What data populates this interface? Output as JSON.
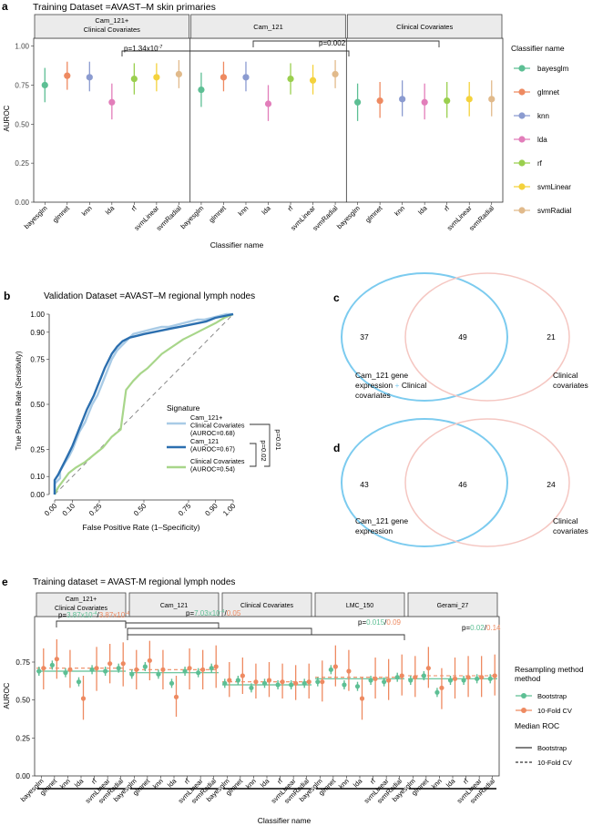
{
  "panels": {
    "a": "a",
    "b": "b",
    "c": "c",
    "d": "d",
    "e": "e"
  },
  "colors": {
    "bayesglm": "#5DBF94",
    "glmnet": "#EE8A61",
    "knn": "#8B9BD0",
    "lda": "#E27EBA",
    "rf": "#9ACF4E",
    "svmLinear": "#F4D23C",
    "svmRadial": "#E1BA8B",
    "roc_combined": "#A9CBE6",
    "roc_cam": "#2C6FAF",
    "roc_clin": "#A8D68A",
    "venn_left": "#7CCBEF",
    "venn_right": "#F5C7C2",
    "boot": "#5DBF94",
    "cv": "#EE8A61"
  },
  "chart_data": [
    {
      "id": "a",
      "type": "scatter",
      "title": "Training Dataset =AVAST–M skin primaries",
      "xlabel": "Classifier name",
      "ylabel": "AUROC",
      "ylim": [
        0,
        1.05
      ],
      "yticks": [
        "0.00",
        "0.25",
        "0.50",
        "0.75",
        "1.00"
      ],
      "facets": [
        "Cam_121+\nClinical Covariates",
        "Cam_121",
        "Clinical Covariates"
      ],
      "categories": [
        "bayesglm",
        "glmnet",
        "knn",
        "lda",
        "rf",
        "svmLinear",
        "svmRadial"
      ],
      "series": [
        {
          "facet": 0,
          "mean": [
            0.75,
            0.81,
            0.8,
            0.64,
            0.79,
            0.8,
            0.82
          ],
          "lo": [
            0.64,
            0.72,
            0.71,
            0.53,
            0.69,
            0.71,
            0.73
          ],
          "hi": [
            0.86,
            0.9,
            0.9,
            0.76,
            0.89,
            0.89,
            0.91
          ]
        },
        {
          "facet": 1,
          "mean": [
            0.72,
            0.8,
            0.8,
            0.63,
            0.79,
            0.78,
            0.82
          ],
          "lo": [
            0.61,
            0.71,
            0.71,
            0.52,
            0.69,
            0.69,
            0.73
          ],
          "hi": [
            0.83,
            0.9,
            0.9,
            0.75,
            0.89,
            0.88,
            0.91
          ]
        },
        {
          "facet": 2,
          "mean": [
            0.64,
            0.65,
            0.66,
            0.64,
            0.65,
            0.66,
            0.66
          ],
          "lo": [
            0.52,
            0.54,
            0.55,
            0.53,
            0.54,
            0.55,
            0.55
          ],
          "hi": [
            0.76,
            0.77,
            0.78,
            0.76,
            0.77,
            0.77,
            0.78
          ]
        }
      ],
      "legend_title": "Classifier name",
      "annotations": [
        {
          "text": "p=1.34x10",
          "sup": "-7"
        },
        {
          "text": "p=0.002"
        }
      ]
    },
    {
      "id": "b",
      "type": "line",
      "title": "Validation Dataset =AVAST–M regional lymph nodes",
      "xlabel": "False Positive Rate (1–Specificity)",
      "ylabel": "True Positive Rate (Sensitivity)",
      "xticks": [
        "0.00",
        "0.10",
        "0.25",
        "0.50",
        "0.75",
        "0.90",
        "1.00"
      ],
      "xtick_vals": [
        0,
        0.1,
        0.25,
        0.5,
        0.75,
        0.9,
        1.0
      ],
      "yticks": [
        "0.00",
        "0.10",
        "0.25",
        "0.50",
        "0.75",
        "0.90",
        "1.00"
      ],
      "ytick_vals": [
        0,
        0.1,
        0.25,
        0.5,
        0.75,
        0.9,
        1.0
      ],
      "legend_title": "Signature",
      "series": [
        {
          "name": "Cam_121+ Clinical Covariates (AUROC=0.68)",
          "l1": "Cam_121+",
          "l2": "Clinical Covariates",
          "l3": "(AUROC=0.68)",
          "x": [
            0,
            0,
            0.03,
            0.03,
            0.06,
            0.08,
            0.1,
            0.12,
            0.14,
            0.17,
            0.19,
            0.21,
            0.24,
            0.26,
            0.28,
            0.3,
            0.32,
            0.35,
            0.38,
            0.41,
            0.44,
            0.48,
            0.52,
            0.56,
            0.6,
            0.64,
            0.68,
            0.72,
            0.76,
            0.8,
            0.84,
            0.88,
            0.92,
            0.96,
            1.0
          ],
          "y": [
            0,
            0.06,
            0.09,
            0.13,
            0.18,
            0.21,
            0.25,
            0.3,
            0.35,
            0.4,
            0.45,
            0.5,
            0.55,
            0.6,
            0.65,
            0.7,
            0.75,
            0.8,
            0.83,
            0.86,
            0.89,
            0.9,
            0.91,
            0.92,
            0.93,
            0.93,
            0.94,
            0.95,
            0.96,
            0.97,
            0.97,
            0.98,
            0.99,
            1.0,
            1.0
          ]
        },
        {
          "name": "Cam_121 (AUROC=0.67)",
          "l1": "Cam_121",
          "l2": "(AUROC=0.67)",
          "l3": "",
          "x": [
            0,
            0,
            0.02,
            0.04,
            0.06,
            0.08,
            0.1,
            0.12,
            0.14,
            0.16,
            0.18,
            0.2,
            0.22,
            0.24,
            0.26,
            0.28,
            0.3,
            0.32,
            0.35,
            0.38,
            0.42,
            0.46,
            0.5,
            0.55,
            0.6,
            0.65,
            0.7,
            0.75,
            0.8,
            0.85,
            0.9,
            0.95,
            1.0
          ],
          "y": [
            0,
            0.08,
            0.11,
            0.15,
            0.19,
            0.23,
            0.27,
            0.32,
            0.37,
            0.42,
            0.47,
            0.51,
            0.55,
            0.6,
            0.65,
            0.7,
            0.74,
            0.78,
            0.82,
            0.85,
            0.87,
            0.88,
            0.89,
            0.9,
            0.91,
            0.92,
            0.93,
            0.94,
            0.95,
            0.96,
            0.98,
            0.99,
            1.0
          ]
        },
        {
          "name": "Clinical Covariates (AUROC=0.54)",
          "l1": "Clinical Covariates",
          "l2": "(AUROC=0.54)",
          "l3": "",
          "x": [
            0,
            0.02,
            0.05,
            0.08,
            0.12,
            0.17,
            0.22,
            0.27,
            0.32,
            0.37,
            0.4,
            0.44,
            0.48,
            0.52,
            0.56,
            0.6,
            0.66,
            0.72,
            0.78,
            0.84,
            0.9,
            0.95,
            1.0
          ],
          "y": [
            0,
            0.04,
            0.08,
            0.12,
            0.15,
            0.18,
            0.22,
            0.26,
            0.32,
            0.36,
            0.58,
            0.63,
            0.67,
            0.7,
            0.74,
            0.78,
            0.82,
            0.86,
            0.89,
            0.92,
            0.95,
            0.98,
            1.0
          ]
        }
      ],
      "annotations": [
        {
          "text": "p=0.02"
        },
        {
          "text": "p=0.01"
        }
      ]
    },
    {
      "id": "e",
      "type": "scatter",
      "title": "Training dataset = AVAST-M regional lymph nodes",
      "xlabel": "Classifier name",
      "ylabel": "AUROC",
      "ylim": [
        0,
        1.05
      ],
      "yticks": [
        "0.00",
        "0.25",
        "0.50",
        "0.75"
      ],
      "facets": [
        "Cam_121+\nClinical Covariates",
        "Cam_121",
        "Clinical Covariates",
        "LMC_150",
        "Gerami_27"
      ],
      "categories": [
        "bayesglm",
        "glmnet",
        "knn",
        "lda",
        "rf",
        "svmLinear",
        "svmRadial"
      ],
      "legend_title": "Resampling method",
      "series_names": [
        "Bootstrap",
        "10-Fold CV"
      ],
      "median_title": "Median ROC",
      "median_names": [
        "Bootstrap",
        "10-Fold CV"
      ],
      "facets_data": [
        {
          "median_boot": 0.69,
          "median_cv": 0.71,
          "boot": [
            0.69,
            0.73,
            0.68,
            0.62,
            0.7,
            0.69,
            0.71
          ],
          "boot_lo": [
            0.66,
            0.7,
            0.65,
            0.59,
            0.67,
            0.66,
            0.68
          ],
          "boot_hi": [
            0.72,
            0.76,
            0.71,
            0.65,
            0.73,
            0.72,
            0.74
          ],
          "cv": [
            0.71,
            0.77,
            0.7,
            0.51,
            0.71,
            0.74,
            0.74
          ],
          "cv_lo": [
            0.57,
            0.64,
            0.58,
            0.37,
            0.56,
            0.61,
            0.59
          ],
          "cv_hi": [
            0.84,
            0.9,
            0.83,
            0.66,
            0.85,
            0.87,
            0.88
          ]
        },
        {
          "median_boot": 0.68,
          "median_cv": 0.7,
          "boot": [
            0.67,
            0.72,
            0.67,
            0.61,
            0.69,
            0.68,
            0.71
          ],
          "boot_lo": [
            0.64,
            0.69,
            0.64,
            0.58,
            0.66,
            0.65,
            0.68
          ],
          "boot_hi": [
            0.7,
            0.75,
            0.7,
            0.64,
            0.72,
            0.71,
            0.74
          ],
          "cv": [
            0.7,
            0.76,
            0.7,
            0.52,
            0.71,
            0.7,
            0.72
          ],
          "cv_lo": [
            0.57,
            0.63,
            0.57,
            0.39,
            0.57,
            0.57,
            0.58
          ],
          "cv_hi": [
            0.83,
            0.89,
            0.83,
            0.66,
            0.84,
            0.83,
            0.86
          ]
        },
        {
          "median_boot": 0.6,
          "median_cv": 0.62,
          "boot": [
            0.61,
            0.63,
            0.58,
            0.61,
            0.6,
            0.6,
            0.61
          ],
          "boot_lo": [
            0.58,
            0.6,
            0.55,
            0.58,
            0.57,
            0.57,
            0.58
          ],
          "boot_hi": [
            0.64,
            0.66,
            0.61,
            0.64,
            0.63,
            0.63,
            0.64
          ],
          "cv": [
            0.63,
            0.66,
            0.62,
            0.63,
            0.62,
            0.61,
            0.62
          ],
          "cv_lo": [
            0.52,
            0.54,
            0.51,
            0.52,
            0.51,
            0.5,
            0.51
          ],
          "cv_hi": [
            0.75,
            0.78,
            0.74,
            0.75,
            0.74,
            0.73,
            0.74
          ]
        },
        {
          "median_boot": 0.64,
          "median_cv": 0.65,
          "boot": [
            0.62,
            0.7,
            0.6,
            0.59,
            0.63,
            0.62,
            0.65
          ],
          "boot_lo": [
            0.59,
            0.67,
            0.57,
            0.56,
            0.6,
            0.59,
            0.62
          ],
          "boot_hi": [
            0.65,
            0.73,
            0.63,
            0.62,
            0.66,
            0.65,
            0.68
          ],
          "cv": [
            0.62,
            0.72,
            0.69,
            0.51,
            0.64,
            0.63,
            0.66
          ],
          "cv_lo": [
            0.49,
            0.59,
            0.56,
            0.37,
            0.51,
            0.5,
            0.53
          ],
          "cv_hi": [
            0.76,
            0.86,
            0.83,
            0.65,
            0.78,
            0.77,
            0.8
          ]
        },
        {
          "median_boot": 0.64,
          "median_cv": 0.66,
          "boot": [
            0.63,
            0.66,
            0.55,
            0.63,
            0.63,
            0.64,
            0.64
          ],
          "boot_lo": [
            0.6,
            0.63,
            0.52,
            0.6,
            0.6,
            0.61,
            0.61
          ],
          "boot_hi": [
            0.66,
            0.69,
            0.58,
            0.66,
            0.66,
            0.67,
            0.67
          ],
          "cv": [
            0.65,
            0.71,
            0.58,
            0.64,
            0.65,
            0.65,
            0.66
          ],
          "cv_lo": [
            0.52,
            0.58,
            0.44,
            0.51,
            0.52,
            0.52,
            0.53
          ],
          "cv_hi": [
            0.79,
            0.85,
            0.71,
            0.78,
            0.79,
            0.79,
            0.8
          ]
        }
      ],
      "annotations": [
        {
          "pre": "p=",
          "g": "3.87x10",
          "gs": "-4",
          "sep": "/",
          "o": "3.87x10",
          "os": "-4"
        },
        {
          "pre": "p=",
          "g": "7.03x10",
          "gs": "-4",
          "sep": "/",
          "o": "0.05",
          "os": ""
        },
        {
          "pre": "p=",
          "g": "0.015",
          "gs": "",
          "sep": "/",
          "o": "0.09",
          "os": ""
        },
        {
          "pre": "p=",
          "g": "0.02",
          "gs": "",
          "sep": "/",
          "o": "0.14",
          "os": ""
        }
      ]
    }
  ],
  "venn_c": {
    "left": "37",
    "mid": "49",
    "right": "21",
    "label_left_1": "Cam_121 gene",
    "label_left_2a": "expression",
    "label_left_plus": "+",
    "label_left_2b": "Clinical",
    "label_left_3": "covariates",
    "label_right_1": "Clinical",
    "label_right_2": "covariates"
  },
  "venn_d": {
    "left": "43",
    "mid": "46",
    "right": "24",
    "label_left_1": "Cam_121 gene",
    "label_left_2": "expression",
    "label_right_1": "Clinical",
    "label_right_2": "covariates"
  }
}
